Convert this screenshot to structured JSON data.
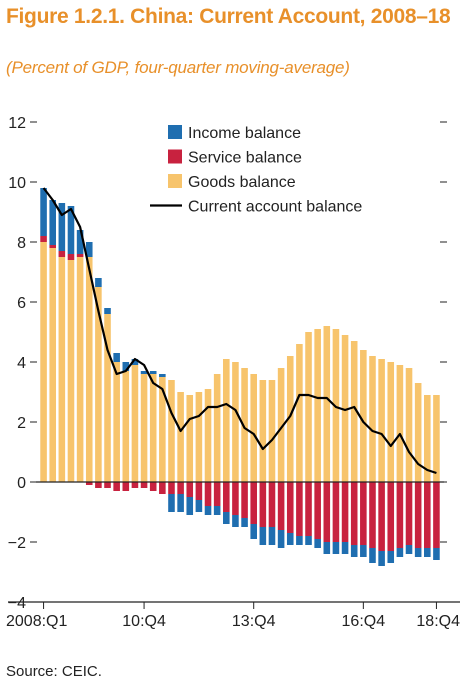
{
  "title": "Figure 1.2.1. China: Current Account, 2008–18",
  "subtitle": "(Percent of GDP, four-quarter moving-average)",
  "source": "Source: CEIC.",
  "colors": {
    "income": "#1f6eb0",
    "service": "#c8223f",
    "goods": "#f7c46c",
    "current": "#000000",
    "axis": "#222222"
  },
  "chart_data": {
    "type": "bar",
    "x_tick_labels": [
      "2008:Q1",
      "10:Q4",
      "13:Q4",
      "16:Q4",
      "18:Q4"
    ],
    "x_tick_index": [
      0,
      11,
      23,
      35,
      43
    ],
    "ylim": [
      -4,
      12
    ],
    "y_ticks": [
      -4,
      -2,
      0,
      2,
      4,
      6,
      8,
      10,
      12
    ],
    "y_tick_labels": [
      "−4",
      "−2",
      "0",
      "2",
      "4",
      "6",
      "8",
      "10",
      "12"
    ],
    "legend_position": "top-center",
    "series": [
      {
        "name": "Income balance",
        "kind": "bar",
        "values": [
          1.6,
          1.5,
          1.6,
          1.6,
          0.8,
          0.5,
          0.3,
          0.2,
          0.3,
          0.3,
          0.2,
          0.1,
          0.1,
          0.1,
          -0.6,
          -0.6,
          -0.6,
          -0.4,
          -0.3,
          -0.3,
          -0.4,
          -0.4,
          -0.3,
          -0.5,
          -0.6,
          -0.6,
          -0.6,
          -0.4,
          -0.3,
          -0.3,
          -0.3,
          -0.4,
          -0.4,
          -0.4,
          -0.4,
          -0.4,
          -0.5,
          -0.5,
          -0.4,
          -0.3,
          -0.3,
          -0.3,
          -0.3,
          -0.4
        ]
      },
      {
        "name": "Service balance",
        "kind": "bar",
        "values": [
          0.2,
          0.1,
          0.2,
          0.2,
          0.1,
          -0.1,
          -0.2,
          -0.2,
          -0.3,
          -0.3,
          -0.2,
          -0.2,
          -0.3,
          -0.4,
          -0.4,
          -0.4,
          -0.5,
          -0.6,
          -0.8,
          -0.8,
          -1.0,
          -1.1,
          -1.2,
          -1.4,
          -1.5,
          -1.5,
          -1.6,
          -1.7,
          -1.8,
          -1.8,
          -1.9,
          -2.0,
          -2.0,
          -2.0,
          -2.1,
          -2.1,
          -2.2,
          -2.3,
          -2.3,
          -2.2,
          -2.1,
          -2.2,
          -2.2,
          -2.2
        ]
      },
      {
        "name": "Goods balance",
        "kind": "bar",
        "values": [
          8.0,
          7.8,
          7.5,
          7.4,
          7.5,
          7.5,
          6.5,
          5.6,
          4.0,
          3.7,
          3.9,
          3.6,
          3.6,
          3.5,
          3.4,
          3.0,
          2.9,
          3.0,
          3.1,
          3.6,
          4.1,
          4.0,
          3.8,
          3.6,
          3.4,
          3.4,
          3.8,
          4.2,
          4.6,
          5.0,
          5.1,
          5.2,
          5.1,
          4.9,
          4.7,
          4.4,
          4.2,
          4.1,
          4.0,
          3.9,
          3.8,
          3.3,
          2.9,
          2.9
        ]
      },
      {
        "name": "Current account balance",
        "kind": "line",
        "values": [
          9.8,
          9.4,
          8.9,
          9.1,
          8.5,
          7.1,
          5.7,
          4.4,
          3.6,
          3.7,
          4.1,
          3.9,
          3.3,
          3.1,
          2.3,
          1.7,
          2.1,
          2.2,
          2.5,
          2.5,
          2.6,
          2.4,
          1.8,
          1.6,
          1.1,
          1.4,
          1.8,
          2.2,
          2.9,
          2.9,
          2.8,
          2.8,
          2.5,
          2.4,
          2.5,
          2.0,
          1.7,
          1.6,
          1.2,
          1.6,
          1.0,
          0.6,
          0.4,
          0.3
        ]
      }
    ]
  }
}
